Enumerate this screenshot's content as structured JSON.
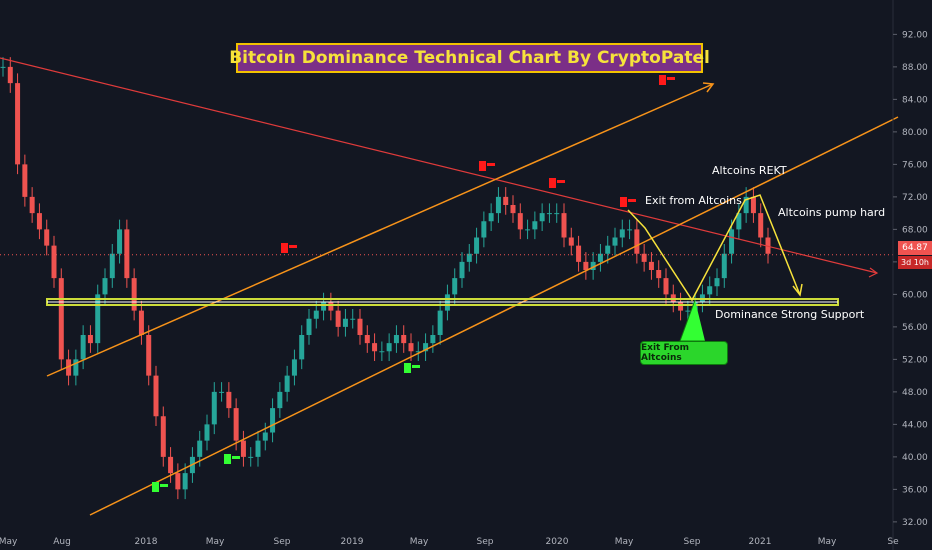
{
  "title": "Bitcoin Dominance Technical Chart By CryptoPatel",
  "annotations": {
    "exit_from_altcoins": "Exit from Altcoins",
    "altcoins_rekt": "Altcoins REKT",
    "altcoins_pump_hard": "Altcoins pump hard",
    "dominance_support": "Dominance Strong Support",
    "exit_badge": "Exit From Altcoins"
  },
  "price_tag": "64.87",
  "time_tag": "3d 10h",
  "colors": {
    "background": "#131722",
    "bull": "#26a69a",
    "bear": "#ef5350",
    "channel": "#f7931a",
    "downtrend": "#e03b3b",
    "support": "#cddc39",
    "arrow": "#f6e23b",
    "flag_red": "#ff1a1a",
    "flag_green": "#33ff33"
  },
  "chart_data": {
    "type": "line",
    "subtype": "candlestick",
    "title": "Bitcoin Dominance Technical Chart By CryptoPatel",
    "ylim": [
      31,
      95
    ],
    "y_ticks": [
      "92.00",
      "88.00",
      "84.00",
      "80.00",
      "76.00",
      "72.00",
      "68.00",
      "64.00",
      "60.00",
      "56.00",
      "52.00",
      "48.00",
      "44.00",
      "40.00",
      "36.00",
      "32.00"
    ],
    "x_ticks": [
      "May",
      "Aug",
      "2018",
      "May",
      "Sep",
      "2019",
      "May",
      "Sep",
      "2020",
      "May",
      "Sep",
      "2021",
      "May",
      "Se"
    ],
    "x_range": [
      "2017-05",
      "2021-09"
    ],
    "grid": false,
    "series": [
      {
        "values": [
          88,
          86,
          76,
          72,
          70,
          68,
          66,
          62,
          52,
          50,
          52,
          55,
          54,
          60,
          62,
          65,
          68,
          62,
          58,
          55,
          50,
          45,
          40,
          38,
          36,
          38,
          40,
          42,
          44,
          48,
          48,
          46,
          42,
          40,
          40,
          42,
          43,
          46,
          48,
          50,
          52,
          55,
          57,
          58,
          59,
          58,
          56,
          57,
          57,
          55,
          54,
          53,
          53,
          54,
          55,
          54,
          53,
          53,
          54,
          55,
          58,
          60,
          62,
          64,
          65,
          67,
          69,
          70,
          72,
          71,
          70,
          68,
          68,
          69,
          70,
          70,
          70,
          67,
          66,
          64,
          63,
          64,
          65,
          66,
          67,
          68,
          68,
          65,
          64,
          63,
          62,
          60,
          59,
          58,
          58,
          59,
          60,
          61,
          62,
          65,
          68,
          70,
          72,
          70,
          67,
          65
        ]
      }
    ],
    "levels": {
      "current_price": 64.87,
      "support": 58
    }
  }
}
